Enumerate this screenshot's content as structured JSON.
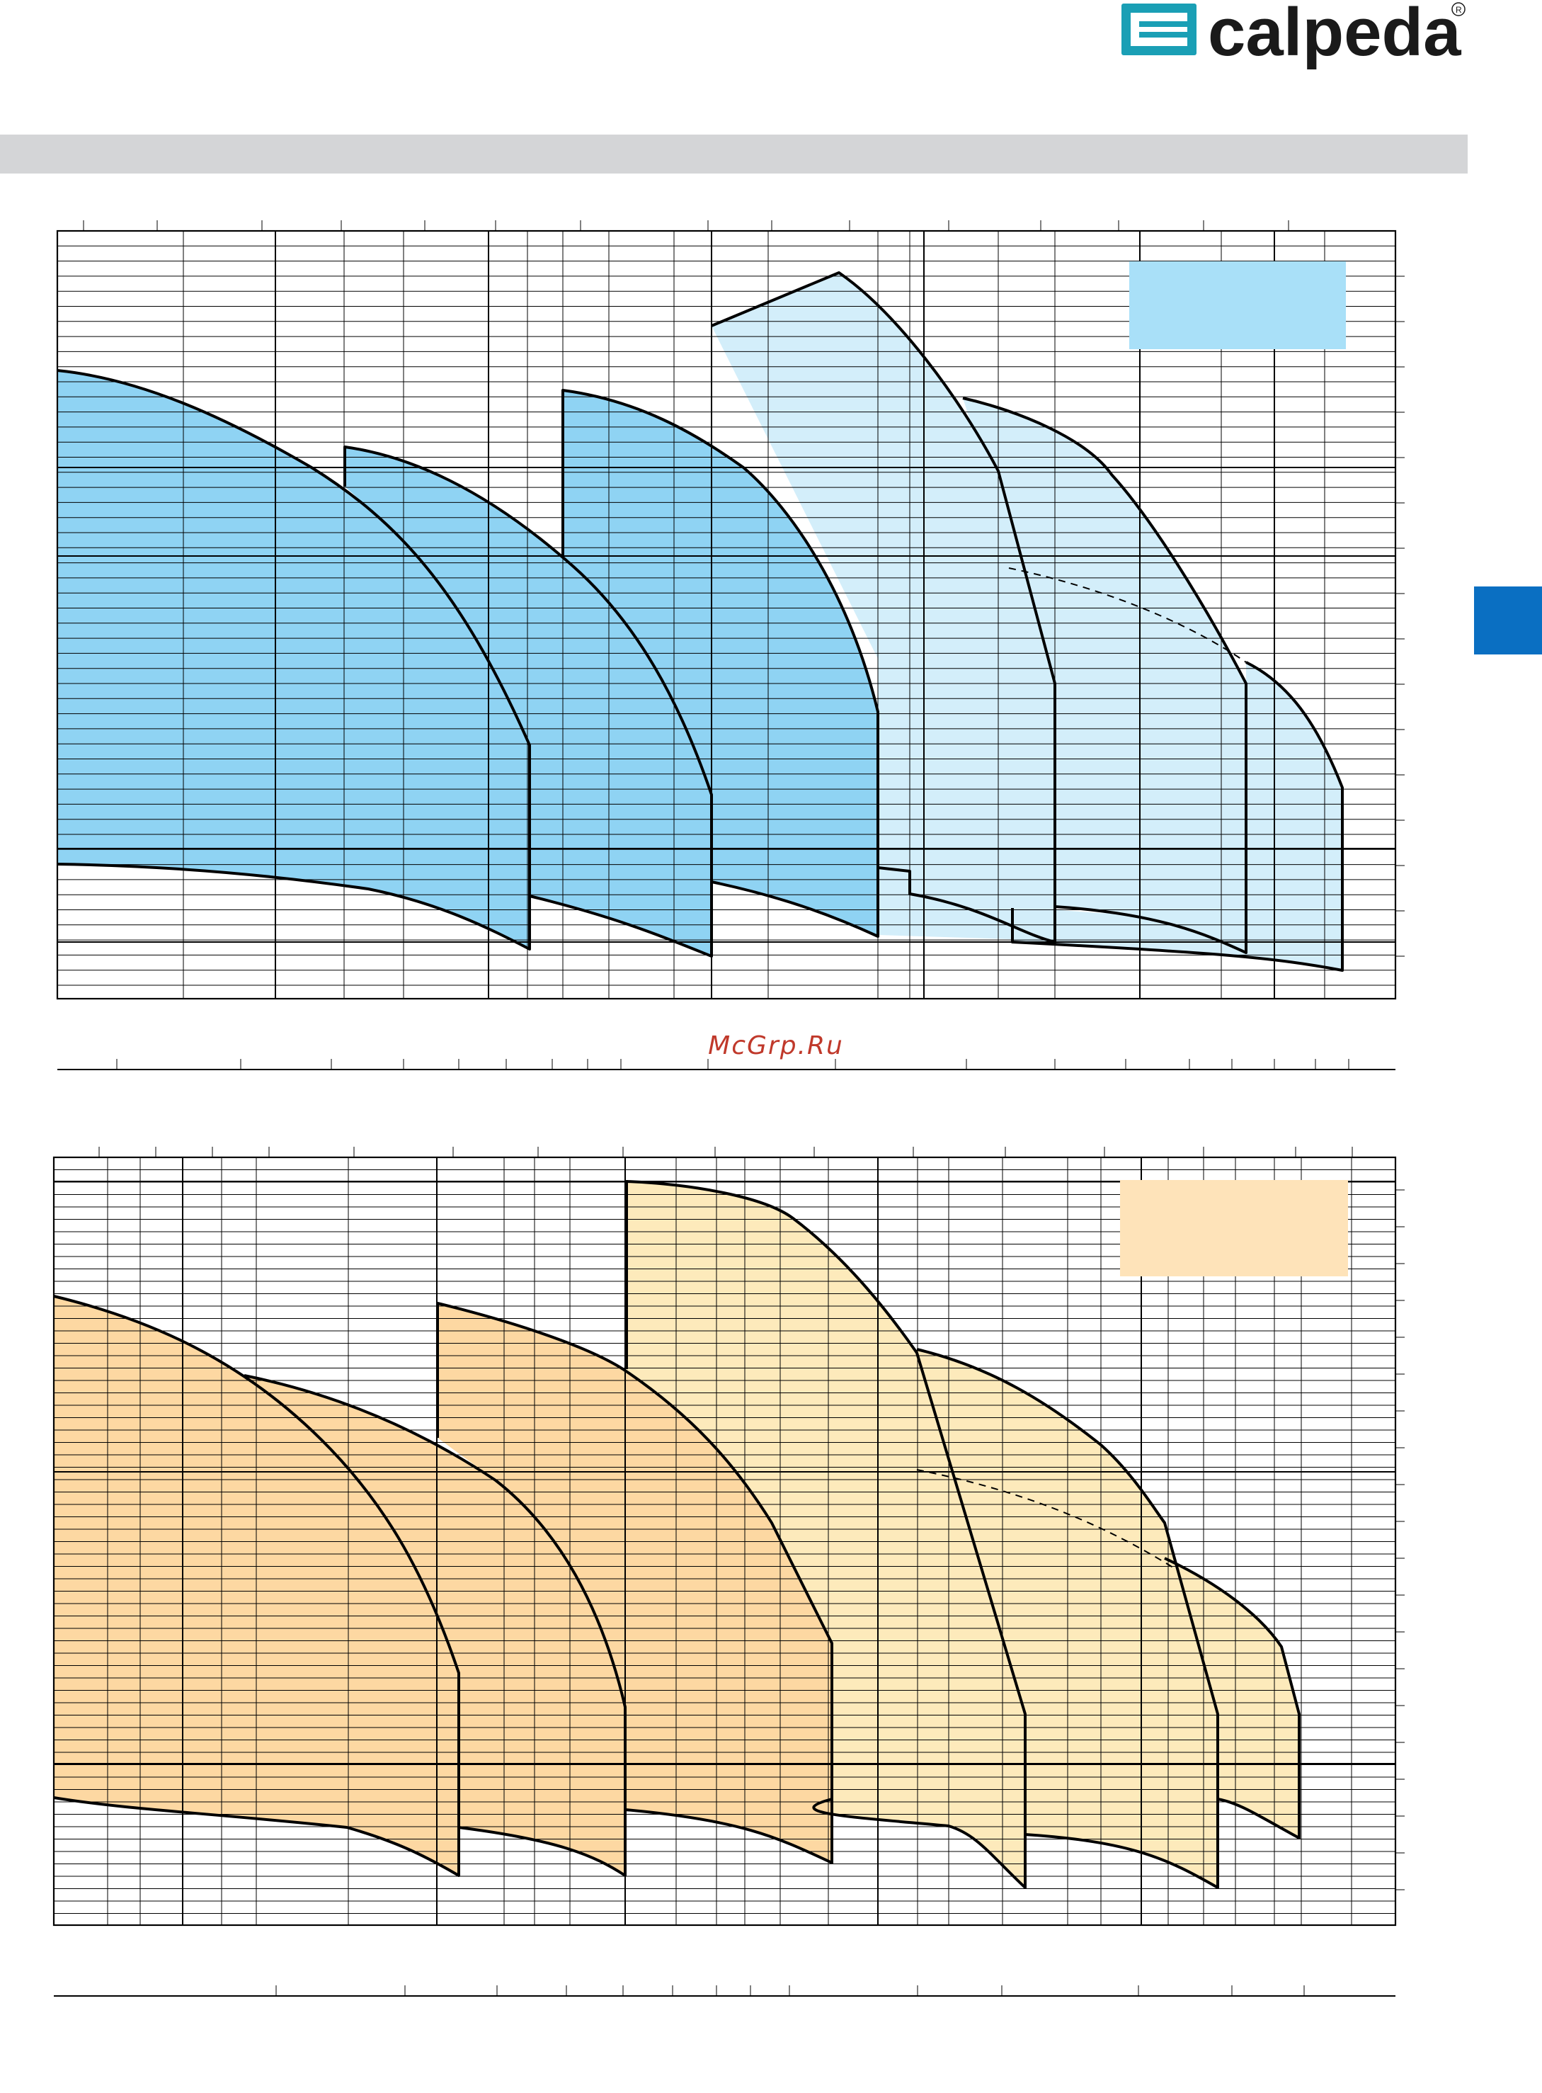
{
  "header": {
    "brand": "calpeda",
    "brand_color": "#1a9fb5",
    "band_color": "#d4d5d7",
    "section_tab_color": "#0a6fc2"
  },
  "watermark": "McGrp.Ru",
  "chart_data": [
    {
      "type": "area",
      "title": "",
      "colors": {
        "dark": "#8fd3f3",
        "light": "#d3eefa",
        "legend": "#a9e0f8"
      },
      "legend_box": {
        "color": "#a9e0f8",
        "placement": "top-right",
        "label": ""
      },
      "grid": true,
      "series": []
    },
    {
      "type": "area",
      "title": "",
      "colors": {
        "dark": "#fdd8a2",
        "light": "#fdeabb",
        "legend": "#fee3b9"
      },
      "legend_box": {
        "color": "#fee3b9",
        "placement": "top-right",
        "label": ""
      },
      "grid": true,
      "series": []
    }
  ]
}
